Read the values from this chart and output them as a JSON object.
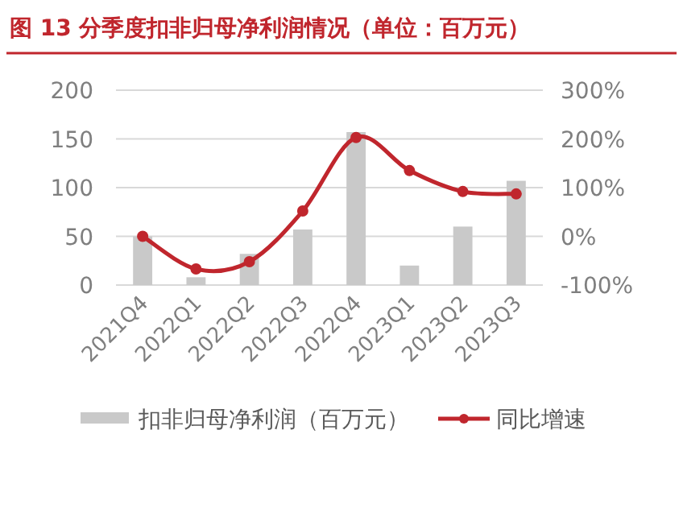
{
  "chart_data": {
    "type": "bar",
    "title": "图 13 分季度扣非归母净利润情况（单位：百万元）",
    "categories": [
      "2021Q4",
      "2022Q1",
      "2022Q2",
      "2022Q3",
      "2022Q4",
      "2023Q1",
      "2023Q2",
      "2023Q3"
    ],
    "series": [
      {
        "name": "扣非归母净利润（百万元）",
        "color": "#c9c9c9",
        "values": [
          50,
          8,
          32,
          57,
          157,
          20,
          60,
          107
        ]
      },
      {
        "name": "同比增速",
        "type": "line",
        "axis": "y2",
        "color": "#c0262d",
        "marker": "circle",
        "values": [
          0,
          -67,
          -52,
          52,
          203,
          135,
          92,
          87
        ]
      }
    ],
    "ylim": [
      0,
      200
    ],
    "yticks": [
      0,
      50,
      100,
      150,
      200
    ],
    "y2lim": [
      -100,
      300
    ],
    "y2ticks": [
      {
        "value": -100,
        "label": "-100%"
      },
      {
        "value": 0,
        "label": "0%"
      },
      {
        "value": 100,
        "label": "100%"
      },
      {
        "value": 200,
        "label": "200%"
      },
      {
        "value": 300,
        "label": "300%"
      }
    ],
    "grid": "y",
    "legend": "bottom"
  }
}
